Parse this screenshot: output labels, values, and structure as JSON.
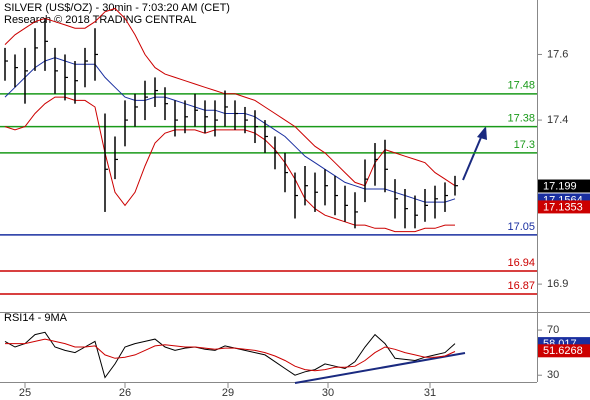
{
  "chart_data": [
    {
      "type": "ohlc",
      "title": "SILVER (US$/OZ) - 30min - 7:03:20 AM (CET)",
      "subtitle": "Research © 2018 TRADING CENTRAL",
      "x": [
        0,
        1,
        2,
        3,
        4,
        5,
        6,
        7,
        8,
        9,
        10,
        11,
        12,
        13,
        14,
        15,
        16,
        17,
        18,
        19,
        20,
        21,
        22,
        23,
        24,
        25,
        26,
        27,
        28,
        29,
        30,
        31,
        32,
        33,
        34,
        35,
        36,
        37,
        38,
        39,
        40,
        41,
        42,
        43,
        44,
        45
      ],
      "xlim": [
        -0.5,
        53.2
      ],
      "xticks": [
        {
          "value": 2,
          "label": "25"
        },
        {
          "value": 12,
          "label": "26"
        },
        {
          "value": 22.3,
          "label": "29"
        },
        {
          "value": 32.3,
          "label": "30"
        },
        {
          "value": 42.5,
          "label": "31"
        }
      ],
      "ylim": [
        16.815,
        17.766
      ],
      "yticks": [
        17.6,
        17.4,
        16.9
      ],
      "bar_color": "#000000",
      "bars": {
        "high": [
          17.62,
          17.6,
          17.62,
          17.68,
          17.71,
          17.62,
          17.6,
          17.58,
          17.62,
          17.68,
          17.42,
          17.35,
          17.46,
          17.48,
          17.52,
          17.53,
          17.5,
          17.46,
          17.46,
          17.48,
          17.46,
          17.46,
          17.49,
          17.46,
          17.44,
          17.43,
          17.4,
          17.35,
          17.3,
          17.24,
          17.26,
          17.24,
          17.25,
          17.23,
          17.2,
          17.18,
          17.28,
          17.33,
          17.34,
          17.22,
          17.19,
          17.17,
          17.19,
          17.2,
          17.21,
          17.23
        ],
        "low": [
          17.52,
          17.5,
          17.45,
          17.55,
          17.55,
          17.48,
          17.46,
          17.45,
          17.5,
          17.52,
          17.12,
          17.22,
          17.32,
          17.38,
          17.4,
          17.44,
          17.4,
          17.35,
          17.36,
          17.38,
          17.36,
          17.35,
          17.38,
          17.37,
          17.36,
          17.33,
          17.3,
          17.25,
          17.18,
          17.1,
          17.14,
          17.12,
          17.14,
          17.11,
          17.09,
          17.07,
          17.15,
          17.2,
          17.18,
          17.1,
          17.07,
          17.07,
          17.09,
          17.1,
          17.12,
          17.17
        ],
        "close": [
          17.58,
          17.56,
          17.55,
          17.62,
          17.64,
          17.55,
          17.53,
          17.52,
          17.58,
          17.6,
          17.25,
          17.28,
          17.4,
          17.44,
          17.47,
          17.49,
          17.45,
          17.4,
          17.41,
          17.43,
          17.41,
          17.4,
          17.44,
          17.42,
          17.4,
          17.38,
          17.35,
          17.3,
          17.24,
          17.17,
          17.2,
          17.18,
          17.2,
          17.17,
          17.14,
          17.12,
          17.22,
          17.28,
          17.25,
          17.16,
          17.13,
          17.11,
          17.14,
          17.16,
          17.17,
          17.2
        ]
      },
      "lines": [
        {
          "color": "#1a2fa0",
          "values": [
            17.47,
            17.5,
            17.53,
            17.56,
            17.58,
            17.59,
            17.58,
            17.57,
            17.57,
            17.57,
            17.53,
            17.5,
            17.47,
            17.46,
            17.46,
            17.47,
            17.47,
            17.46,
            17.45,
            17.44,
            17.43,
            17.43,
            17.42,
            17.42,
            17.42,
            17.41,
            17.39,
            17.37,
            17.35,
            17.32,
            17.29,
            17.27,
            17.25,
            17.23,
            17.21,
            17.2,
            17.19,
            17.19,
            17.19,
            17.18,
            17.17,
            17.16,
            17.15,
            17.15,
            17.15,
            17.16
          ]
        },
        {
          "color": "#cc0000",
          "values": [
            17.63,
            17.66,
            17.68,
            17.7,
            17.71,
            17.7,
            17.69,
            17.68,
            17.68,
            17.7,
            17.73,
            17.74,
            17.71,
            17.66,
            17.6,
            17.56,
            17.54,
            17.53,
            17.52,
            17.51,
            17.5,
            17.49,
            17.48,
            17.48,
            17.47,
            17.46,
            17.44,
            17.42,
            17.4,
            17.38,
            17.35,
            17.32,
            17.3,
            17.27,
            17.24,
            17.21,
            17.2,
            17.27,
            17.31,
            17.3,
            17.29,
            17.28,
            17.27,
            17.24,
            17.22,
            17.2
          ]
        },
        {
          "color": "#cc0000",
          "values": [
            17.38,
            17.37,
            17.38,
            17.42,
            17.45,
            17.47,
            17.47,
            17.46,
            17.46,
            17.44,
            17.3,
            17.18,
            17.14,
            17.18,
            17.26,
            17.33,
            17.36,
            17.37,
            17.37,
            17.37,
            17.36,
            17.37,
            17.37,
            17.37,
            17.37,
            17.36,
            17.34,
            17.31,
            17.27,
            17.22,
            17.16,
            17.13,
            17.11,
            17.1,
            17.09,
            17.08,
            17.08,
            17.07,
            17.07,
            17.06,
            17.06,
            17.06,
            17.07,
            17.07,
            17.08,
            17.08
          ]
        }
      ],
      "levels": [
        {
          "value": 17.48,
          "color": "#1a9a1a"
        },
        {
          "value": 17.38,
          "color": "#1a9a1a"
        },
        {
          "value": 17.3,
          "color": "#1a9a1a"
        },
        {
          "value": 17.05,
          "color": "#1a2fa0"
        },
        {
          "value": 16.94,
          "color": "#cc0000"
        },
        {
          "value": 16.87,
          "color": "#cc0000"
        }
      ],
      "last_values": [
        {
          "value": 17.199,
          "color": "#000000"
        },
        {
          "value": 17.1564,
          "color": "#1a2fa0"
        },
        {
          "value": 17.1353,
          "color": "#cc0000"
        }
      ]
    },
    {
      "type": "line",
      "title": "RSI14 - 9MA",
      "x": [
        0,
        1,
        2,
        3,
        4,
        5,
        6,
        7,
        8,
        9,
        10,
        11,
        12,
        13,
        14,
        15,
        16,
        17,
        18,
        19,
        20,
        21,
        22,
        23,
        24,
        25,
        26,
        27,
        28,
        29,
        30,
        31,
        32,
        33,
        34,
        35,
        36,
        37,
        38,
        39,
        40,
        41,
        42,
        43,
        44,
        45
      ],
      "xlim": [
        -0.5,
        53.2
      ],
      "ylim": [
        24,
        86
      ],
      "yticks": [
        70,
        30
      ],
      "lines": [
        {
          "color": "#000000",
          "values": [
            60,
            55,
            58,
            66,
            68,
            55,
            52,
            50,
            55,
            60,
            28,
            40,
            55,
            58,
            60,
            62,
            55,
            52,
            54,
            55,
            53,
            52,
            56,
            54,
            52,
            50,
            48,
            42,
            36,
            30,
            33,
            35,
            40,
            38,
            36,
            42,
            55,
            66,
            58,
            45,
            44,
            43,
            46,
            48,
            50,
            58
          ]
        },
        {
          "color": "#cc0000",
          "values": [
            58,
            58,
            58,
            60,
            62,
            60,
            58,
            55,
            55,
            56,
            48,
            45,
            46,
            48,
            52,
            56,
            57,
            56,
            55,
            55,
            54,
            53,
            54,
            54,
            53,
            52,
            50,
            47,
            43,
            38,
            35,
            34,
            35,
            37,
            37,
            38,
            43,
            50,
            55,
            53,
            50,
            48,
            46,
            46,
            47,
            51
          ]
        }
      ],
      "last_values": [
        {
          "value": 58.017,
          "color": "#1a2fa0"
        },
        {
          "value": 51.6268,
          "color": "#cc0000"
        }
      ]
    }
  ]
}
